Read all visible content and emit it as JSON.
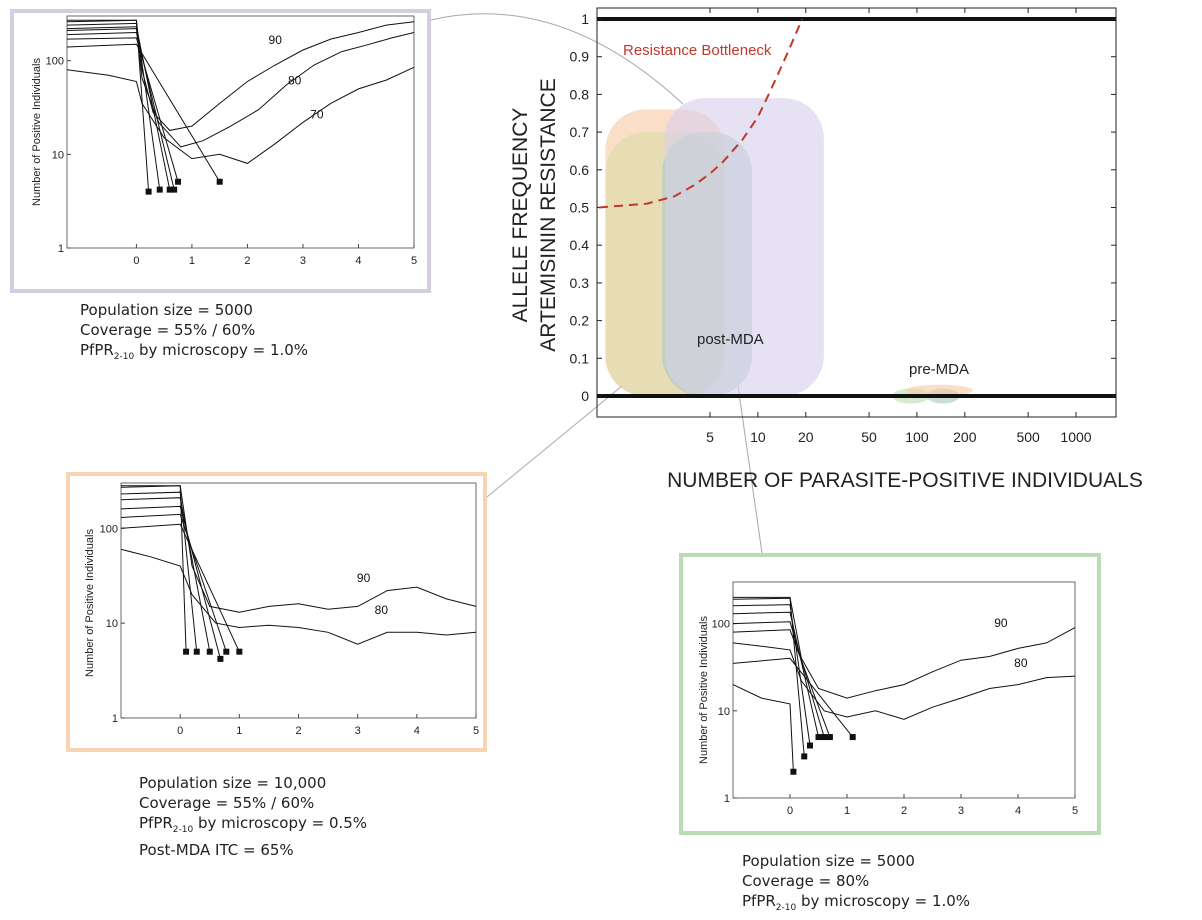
{
  "colors": {
    "orange_box": "#f7d4b4",
    "green_box": "#b9dcb4",
    "purple_box": "#d7cde3",
    "bottleneck": "#c0392b",
    "blob_orange": "#f8c9a6",
    "blob_olive": "#dcdca8",
    "blob_teal": "#a9c9c0",
    "blob_purple": "#d9d1ec",
    "blob_green": "#b8e0b0"
  },
  "main_chart": {
    "ylabel_line1": "ALLELE FREQUENCY",
    "ylabel_line2": "ARTEMISININ RESISTANCE",
    "xlabel": "NUMBER OF PARASITE-POSITIVE INDIVIDUALS",
    "y_ticks": [
      "0",
      "0.1",
      "0.2",
      "0.3",
      "0.4",
      "0.5",
      "0.6",
      "0.7",
      "0.8",
      "0.9",
      "1"
    ],
    "x_ticks": [
      "5",
      "10",
      "20",
      "50",
      "100",
      "200",
      "500",
      "1000"
    ],
    "bottleneck_label": "Resistance Bottleneck",
    "post_label": "post-MDA",
    "pre_label": "pre-MDA"
  },
  "chart_data": [
    {
      "type": "line",
      "name": "main",
      "xlabel": "NUMBER OF PARASITE-POSITIVE INDIVIDUALS",
      "ylabel": "ALLELE FREQUENCY ARTEMISININ RESISTANCE",
      "x_scale": "log",
      "x_tick_values": [
        5,
        10,
        20,
        50,
        100,
        200,
        500,
        1000
      ],
      "ylim": [
        0,
        1
      ],
      "y_tick_values": [
        0,
        0.1,
        0.2,
        0.3,
        0.4,
        0.5,
        0.6,
        0.7,
        0.8,
        0.9,
        1
      ],
      "series": [
        {
          "name": "Resistance Bottleneck",
          "style": "dashed",
          "x": [
            1,
            2,
            3,
            4,
            5,
            6,
            8,
            10,
            12,
            15,
            19
          ],
          "y": [
            0.5,
            0.51,
            0.53,
            0.56,
            0.59,
            0.62,
            0.68,
            0.74,
            0.81,
            0.9,
            1.0
          ]
        }
      ],
      "regions": [
        {
          "label": "post-MDA",
          "color": "blob_orange",
          "x": [
            1.1,
            6.2
          ],
          "y": [
            0,
            0.76
          ]
        },
        {
          "label": "post-MDA",
          "color": "blob_olive",
          "x": [
            1.1,
            6.0
          ],
          "y": [
            0,
            0.7
          ]
        },
        {
          "label": "post-MDA",
          "color": "blob_teal",
          "x": [
            2.5,
            9.2
          ],
          "y": [
            0,
            0.7
          ]
        },
        {
          "label": "post-MDA",
          "color": "blob_purple",
          "x": [
            2.6,
            26
          ],
          "y": [
            0,
            0.79
          ]
        },
        {
          "label": "pre-MDA",
          "color": "blob_green",
          "x": [
            70,
            120
          ],
          "y": [
            -0.02,
            0.02
          ]
        },
        {
          "label": "pre-MDA",
          "color": "blob_teal",
          "x": [
            115,
            185
          ],
          "y": [
            -0.02,
            0.02
          ]
        },
        {
          "label": "pre-MDA",
          "color": "blob_orange",
          "x": [
            85,
            225
          ],
          "y": [
            0,
            0.03
          ]
        }
      ]
    },
    {
      "type": "line",
      "name": "inset-purple",
      "ylabel": "Number of Positive Individuals",
      "y_scale": "log",
      "ylim": [
        1,
        300
      ],
      "xlim": [
        -1.25,
        5
      ],
      "x_ticks": [
        "0",
        "1",
        "2",
        "3",
        "4",
        "5"
      ],
      "y_ticks": [
        "1",
        "10",
        "100"
      ],
      "annotations": [
        "90",
        "80",
        "70"
      ],
      "survivors": [
        {
          "pts": [
            [
              -1.25,
              270
            ],
            [
              0,
              270
            ],
            [
              0.1,
              80
            ],
            [
              0.3,
              28
            ],
            [
              0.6,
              18
            ],
            [
              1,
              20
            ],
            [
              1.5,
              35
            ],
            [
              2,
              60
            ],
            [
              2.5,
              90
            ],
            [
              3,
              130
            ],
            [
              3.5,
              170
            ],
            [
              4,
              200
            ],
            [
              4.5,
              240
            ],
            [
              5,
              260
            ]
          ]
        },
        {
          "pts": [
            [
              -1.25,
              210
            ],
            [
              0,
              220
            ],
            [
              0.1,
              65
            ],
            [
              0.4,
              22
            ],
            [
              0.8,
              12
            ],
            [
              1.2,
              14
            ],
            [
              1.7,
              20
            ],
            [
              2.2,
              30
            ],
            [
              2.7,
              55
            ],
            [
              3.2,
              90
            ],
            [
              3.7,
              125
            ],
            [
              4.2,
              150
            ],
            [
              4.6,
              175
            ],
            [
              5,
              200
            ]
          ]
        },
        {
          "pts": [
            [
              -1.25,
              80
            ],
            [
              -0.5,
              70
            ],
            [
              0,
              60
            ],
            [
              0.1,
              35
            ],
            [
              0.5,
              15
            ],
            [
              1,
              9
            ],
            [
              1.5,
              10
            ],
            [
              2,
              8
            ],
            [
              2.5,
              13
            ],
            [
              3,
              22
            ],
            [
              3.5,
              35
            ],
            [
              4,
              50
            ],
            [
              4.5,
              62
            ],
            [
              5,
              85
            ]
          ]
        }
      ],
      "extinct": [
        {
          "pts": [
            [
              -1.25,
              260
            ],
            [
              0,
              270
            ],
            [
              0.22,
              4
            ]
          ]
        },
        {
          "pts": [
            [
              -1.25,
              240
            ],
            [
              0,
              250
            ],
            [
              0.42,
              4.2
            ]
          ]
        },
        {
          "pts": [
            [
              -1.25,
              220
            ],
            [
              0,
              230
            ],
            [
              0.6,
              4.2
            ]
          ]
        },
        {
          "pts": [
            [
              -1.25,
              190
            ],
            [
              0,
              200
            ],
            [
              0.68,
              4.2
            ]
          ]
        },
        {
          "pts": [
            [
              -1.25,
              170
            ],
            [
              0,
              175
            ],
            [
              0.75,
              5.1
            ]
          ]
        },
        {
          "pts": [
            [
              -1.25,
              140
            ],
            [
              0,
              150
            ],
            [
              1.5,
              5.1
            ]
          ]
        }
      ]
    },
    {
      "type": "line",
      "name": "inset-orange",
      "ylabel": "Number of Positive Individuals",
      "y_scale": "log",
      "ylim": [
        1,
        300
      ],
      "xlim": [
        -1.0,
        5
      ],
      "x_ticks": [
        "0",
        "1",
        "2",
        "3",
        "4",
        "5"
      ],
      "y_ticks": [
        "1",
        "10",
        "100"
      ],
      "annotations": [
        "90",
        "80"
      ],
      "survivors": [
        {
          "pts": [
            [
              -1.0,
              280
            ],
            [
              0,
              280
            ],
            [
              0.2,
              40
            ],
            [
              0.5,
              15
            ],
            [
              1,
              13
            ],
            [
              1.5,
              15
            ],
            [
              2,
              16
            ],
            [
              2.5,
              14
            ],
            [
              3,
              15
            ],
            [
              3.5,
              22
            ],
            [
              4,
              24
            ],
            [
              4.5,
              18
            ],
            [
              5,
              15
            ]
          ]
        },
        {
          "pts": [
            [
              -1.0,
              60
            ],
            [
              -0.5,
              50
            ],
            [
              0,
              40
            ],
            [
              0.2,
              20
            ],
            [
              0.6,
              10
            ],
            [
              1,
              9
            ],
            [
              1.5,
              9.5
            ],
            [
              2,
              9
            ],
            [
              2.5,
              8
            ],
            [
              3,
              6
            ],
            [
              3.5,
              8
            ],
            [
              4,
              8
            ],
            [
              4.5,
              7.5
            ],
            [
              5,
              8
            ]
          ]
        }
      ],
      "extinct": [
        {
          "pts": [
            [
              -1.0,
              270
            ],
            [
              0,
              280
            ],
            [
              0.1,
              5
            ]
          ]
        },
        {
          "pts": [
            [
              -1.0,
              230
            ],
            [
              0,
              240
            ],
            [
              0.28,
              5
            ]
          ]
        },
        {
          "pts": [
            [
              -1.0,
              200
            ],
            [
              0,
              210
            ],
            [
              0.5,
              5
            ]
          ]
        },
        {
          "pts": [
            [
              -1.0,
              160
            ],
            [
              0,
              170
            ],
            [
              0.68,
              4.2
            ]
          ]
        },
        {
          "pts": [
            [
              -1.0,
              130
            ],
            [
              0,
              140
            ],
            [
              0.78,
              5
            ]
          ]
        },
        {
          "pts": [
            [
              -1.0,
              100
            ],
            [
              0,
              110
            ],
            [
              1.0,
              5
            ]
          ]
        }
      ]
    },
    {
      "type": "line",
      "name": "inset-green",
      "ylabel": "Number of Positive Individuals",
      "y_scale": "log",
      "ylim": [
        1,
        300
      ],
      "xlim": [
        -1.0,
        5
      ],
      "x_ticks": [
        "0",
        "1",
        "2",
        "3",
        "4",
        "5"
      ],
      "y_ticks": [
        "1",
        "10",
        "100"
      ],
      "annotations": [
        "90",
        "80"
      ],
      "survivors": [
        {
          "pts": [
            [
              -1.0,
              200
            ],
            [
              0,
              200
            ],
            [
              0.2,
              40
            ],
            [
              0.5,
              18
            ],
            [
              1,
              14
            ],
            [
              1.5,
              17
            ],
            [
              2,
              20
            ],
            [
              2.5,
              28
            ],
            [
              3,
              38
            ],
            [
              3.5,
              42
            ],
            [
              4,
              52
            ],
            [
              4.5,
              60
            ],
            [
              5,
              90
            ]
          ]
        },
        {
          "pts": [
            [
              -1.0,
              60
            ],
            [
              -0.5,
              55
            ],
            [
              0,
              50
            ],
            [
              0.2,
              22
            ],
            [
              0.6,
              10
            ],
            [
              1,
              8.5
            ],
            [
              1.5,
              10
            ],
            [
              2,
              8
            ],
            [
              2.5,
              11
            ],
            [
              3,
              14
            ],
            [
              3.5,
              18
            ],
            [
              4,
              20
            ],
            [
              4.5,
              24
            ],
            [
              5,
              25
            ]
          ]
        }
      ],
      "extinct": [
        {
          "pts": [
            [
              -1.0,
              20
            ],
            [
              -0.5,
              14
            ],
            [
              0,
              12
            ],
            [
              0.06,
              2
            ]
          ]
        },
        {
          "pts": [
            [
              -1.0,
              190
            ],
            [
              0,
              195
            ],
            [
              0.25,
              3
            ]
          ]
        },
        {
          "pts": [
            [
              -1.0,
              160
            ],
            [
              0,
              165
            ],
            [
              0.35,
              4
            ]
          ]
        },
        {
          "pts": [
            [
              -1.0,
              130
            ],
            [
              0,
              135
            ],
            [
              0.5,
              5
            ]
          ]
        },
        {
          "pts": [
            [
              -1.0,
              100
            ],
            [
              0,
              105
            ],
            [
              0.6,
              5
            ]
          ]
        },
        {
          "pts": [
            [
              -1.0,
              80
            ],
            [
              0,
              85
            ],
            [
              0.7,
              5
            ]
          ]
        },
        {
          "pts": [
            [
              -1.0,
              35
            ],
            [
              0,
              40
            ],
            [
              1.1,
              5
            ]
          ]
        }
      ]
    }
  ],
  "captions": {
    "purple": {
      "pop": "Population size = 5000",
      "cov": "Coverage = 55% / 60%",
      "pfpr_pre": "PfPR",
      "pfpr_sub": "2-10",
      "pfpr_post": " by microscopy = 1.0%"
    },
    "orange": {
      "pop": "Population size = 10,000",
      "cov": "Coverage = 55% / 60%",
      "pfpr_pre": "PfPR",
      "pfpr_sub": "2-10",
      "pfpr_post": " by microscopy = 0.5%",
      "itc": "Post-MDA ITC = 65%"
    },
    "green": {
      "pop": "Population size = 5000",
      "cov": "Coverage = 80%",
      "pfpr_pre": "PfPR",
      "pfpr_sub": "2-10",
      "pfpr_post": " by microscopy = 1.0%"
    }
  }
}
